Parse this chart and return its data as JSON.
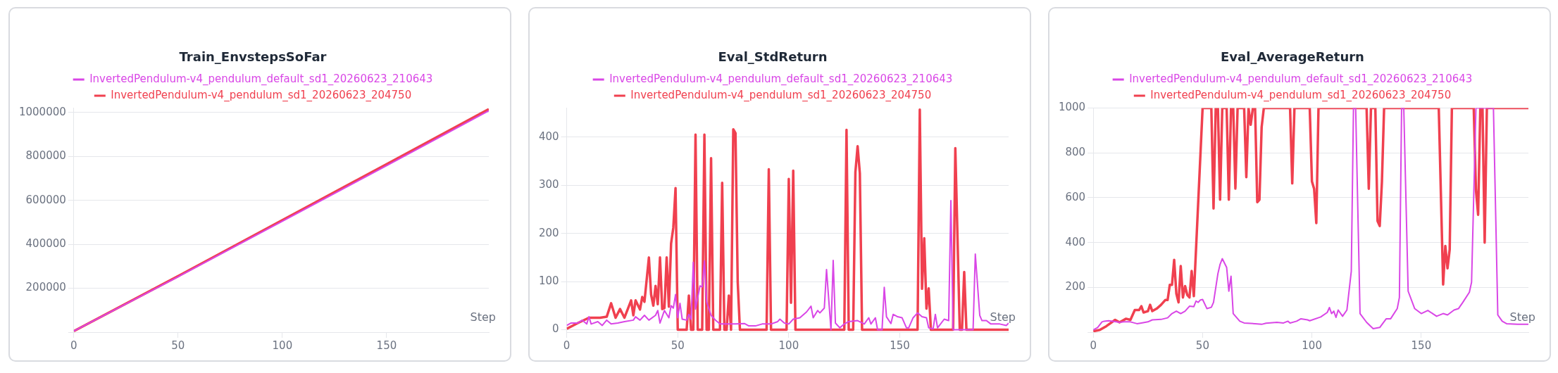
{
  "chart_data": [
    {
      "type": "line",
      "title": "Train_EnvstepsSoFar",
      "xlabel": "Step",
      "legend": "top",
      "grid": "y",
      "xlim": [
        0,
        199
      ],
      "xticks": [
        0,
        50,
        100,
        150
      ],
      "ylim": [
        0,
        1020000
      ],
      "yticks": [
        {
          "value": 0,
          "label": null
        },
        200000,
        400000,
        600000,
        800000,
        1000000
      ],
      "series": [
        {
          "name": "InvertedPendulum-v4_pendulum_default_sd1_20260623_210643",
          "color": "#d946e6",
          "x": [
            0,
            50,
            100,
            150,
            199
          ],
          "values": [
            5000,
            252000,
            505000,
            758000,
            1008000
          ]
        },
        {
          "name": "InvertedPendulum-v4_pendulum_sd1_20260623_204750",
          "color": "#f0404f",
          "x": [
            0,
            50,
            100,
            150,
            199
          ],
          "values": [
            5000,
            255000,
            510000,
            765000,
            1015000
          ]
        }
      ]
    },
    {
      "type": "line",
      "title": "Eval_StdReturn",
      "xlabel": "Step",
      "legend": "top",
      "grid": "y",
      "xlim": [
        0,
        199
      ],
      "xticks": [
        0,
        50,
        100,
        150
      ],
      "ylim": [
        -5,
        460
      ],
      "yticks": [
        0,
        100,
        200,
        300,
        400
      ],
      "series": [
        {
          "name": "InvertedPendulum-v4_pendulum_default_sd1_20260623_210643",
          "color": "#d946e6",
          "x": [
            0,
            2,
            5,
            7,
            9,
            10,
            11,
            14,
            16,
            18,
            20,
            23,
            26,
            30,
            31,
            33,
            35,
            37,
            40,
            41,
            42,
            44,
            46,
            47,
            48,
            49,
            50,
            51,
            52,
            54,
            55,
            56,
            57,
            58,
            60,
            61,
            62,
            63,
            65,
            67,
            69,
            72,
            76,
            80,
            82,
            85,
            88,
            92,
            95,
            96,
            98,
            100,
            102,
            105,
            108,
            110,
            111,
            113,
            114,
            116,
            117,
            119,
            120,
            121,
            123,
            125,
            127,
            131,
            134,
            136,
            137,
            139,
            140,
            142,
            143,
            144,
            146,
            147,
            149,
            151,
            153,
            154,
            156,
            158,
            160,
            162,
            163,
            165,
            166,
            167,
            170,
            172,
            173,
            174,
            183,
            184,
            186,
            187,
            189,
            191,
            195,
            198,
            199
          ],
          "values": [
            9,
            14,
            14,
            20,
            12,
            27,
            12,
            17,
            9,
            20,
            12,
            14,
            17,
            20,
            27,
            20,
            30,
            20,
            30,
            40,
            14,
            40,
            25,
            50,
            45,
            73,
            25,
            55,
            22,
            20,
            32,
            22,
            140,
            43,
            91,
            89,
            143,
            58,
            30,
            20,
            12,
            12,
            12,
            13,
            8,
            8,
            12,
            12,
            17,
            22,
            14,
            12,
            22,
            25,
            37,
            49,
            25,
            40,
            35,
            45,
            125,
            0,
            144,
            14,
            4,
            12,
            17,
            19,
            12,
            25,
            12,
            25,
            0,
            0,
            88,
            27,
            13,
            32,
            27,
            25,
            4,
            4,
            25,
            35,
            27,
            25,
            4,
            2,
            32,
            4,
            22,
            19,
            268,
            0,
            0,
            157,
            30,
            19,
            19,
            12,
            12,
            9,
            14
          ]
        },
        {
          "name": "InvertedPendulum-v4_pendulum_sd1_20260623_204750",
          "color": "#f0404f",
          "x": [
            0,
            5,
            10,
            15,
            18,
            20,
            22,
            24,
            26,
            29,
            30,
            31,
            33,
            34,
            35,
            37,
            38,
            39,
            40,
            41,
            42,
            43,
            44,
            45,
            46,
            47,
            48,
            49,
            50,
            54,
            55,
            56,
            57,
            58,
            59,
            61,
            62,
            63,
            64,
            65,
            66,
            69,
            70,
            71,
            72,
            73,
            74,
            75,
            76,
            77,
            78,
            90,
            91,
            92,
            99,
            100,
            101,
            102,
            103,
            125,
            126,
            127,
            129,
            130,
            131,
            132,
            133,
            158,
            159,
            160,
            161,
            162,
            163,
            164,
            174,
            175,
            177,
            178,
            179,
            180,
            199
          ],
          "values": [
            2,
            14,
            25,
            25,
            27,
            55,
            25,
            43,
            25,
            61,
            30,
            61,
            42,
            68,
            58,
            150,
            73,
            50,
            91,
            53,
            150,
            43,
            45,
            150,
            48,
            179,
            212,
            294,
            0,
            0,
            71,
            0,
            0,
            405,
            0,
            0,
            405,
            0,
            0,
            356,
            0,
            0,
            305,
            0,
            0,
            71,
            0,
            416,
            408,
            99,
            0,
            0,
            333,
            0,
            0,
            313,
            56,
            330,
            0,
            0,
            415,
            0,
            0,
            327,
            381,
            325,
            0,
            0,
            457,
            85,
            190,
            44,
            86,
            0,
            0,
            377,
            0,
            0,
            120,
            0,
            0
          ]
        }
      ]
    },
    {
      "type": "line",
      "title": "Eval_AverageReturn",
      "xlabel": "Step",
      "legend": "top",
      "grid": "y",
      "xlim": [
        0,
        199
      ],
      "xticks": [
        0,
        50,
        100,
        150
      ],
      "ylim": [
        0,
        1000
      ],
      "yticks": [
        {
          "value": 0,
          "label": null
        },
        200,
        400,
        600,
        800,
        1000
      ],
      "series": [
        {
          "name": "InvertedPendulum-v4_pendulum_default_sd1_20260623_210643",
          "color": "#d946e6",
          "x": [
            0,
            2,
            4,
            5,
            7,
            9,
            12,
            14,
            17,
            20,
            22,
            25,
            27,
            31,
            34,
            36,
            38,
            40,
            42,
            44,
            46,
            47,
            48,
            49,
            50,
            52,
            54,
            55,
            57,
            58,
            59,
            61,
            62,
            63,
            64,
            67,
            69,
            74,
            77,
            79,
            84,
            87,
            89,
            90,
            93,
            95,
            98,
            99,
            104,
            107,
            108,
            109,
            110,
            111,
            112,
            114,
            116,
            118,
            119,
            120,
            122,
            125,
            128,
            131,
            134,
            136,
            139,
            140,
            141,
            142,
            144,
            147,
            150,
            153,
            157,
            160,
            162,
            165,
            167,
            169,
            172,
            173,
            175,
            183,
            185,
            187,
            189,
            194,
            199
          ],
          "values": [
            10,
            21,
            46,
            49,
            51,
            49,
            44,
            46,
            46,
            38,
            41,
            46,
            55,
            57,
            64,
            83,
            94,
            83,
            94,
            116,
            114,
            139,
            133,
            144,
            146,
            105,
            111,
            133,
            261,
            303,
            328,
            289,
            183,
            250,
            83,
            49,
            41,
            38,
            35,
            40,
            44,
            41,
            49,
            41,
            49,
            60,
            55,
            51,
            68,
            88,
            110,
            83,
            94,
            66,
            99,
            71,
            99,
            272,
            1000,
            1000,
            83,
            44,
            16,
            21,
            60,
            60,
            105,
            155,
            1000,
            1000,
            183,
            105,
            83,
            97,
            71,
            83,
            77,
            99,
            105,
            133,
            178,
            223,
            1000,
            1000,
            77,
            49,
            38,
            35,
            35
          ]
        },
        {
          "name": "InvertedPendulum-v4_pendulum_sd1_20260623_204750",
          "color": "#f0404f",
          "x": [
            0,
            3,
            6,
            10,
            12,
            15,
            17,
            19,
            21,
            22,
            23,
            25,
            26,
            27,
            29,
            31,
            33,
            34,
            35,
            36,
            37,
            38,
            39,
            40,
            41,
            42,
            43,
            44,
            45,
            46,
            50,
            54,
            55,
            56,
            57,
            58,
            59,
            61,
            62,
            63,
            64,
            65,
            66,
            69,
            70,
            71,
            72,
            73,
            74,
            75,
            76,
            77,
            78,
            90,
            91,
            92,
            99,
            100,
            101,
            102,
            103,
            125,
            126,
            127,
            129,
            130,
            131,
            132,
            133,
            158,
            160,
            161,
            162,
            163,
            164,
            174,
            175,
            176,
            177,
            178,
            179,
            180,
            199
          ],
          "values": [
            4,
            10,
            27,
            55,
            44,
            60,
            55,
            99,
            99,
            116,
            88,
            94,
            122,
            94,
            105,
            122,
            144,
            144,
            211,
            211,
            323,
            172,
            133,
            295,
            155,
            206,
            166,
            155,
            273,
            161,
            1000,
            1000,
            552,
            1000,
            1000,
            591,
            1000,
            1000,
            591,
            1000,
            1000,
            641,
            1000,
            1000,
            692,
            1000,
            926,
            1000,
            1000,
            580,
            591,
            915,
            1000,
            1000,
            664,
            1000,
            1000,
            673,
            640,
            487,
            1000,
            1000,
            640,
            1000,
            1000,
            496,
            474,
            670,
            1000,
            1000,
            213,
            385,
            285,
            369,
            1000,
            1000,
            636,
            524,
            1000,
            1000,
            400,
            1000,
            1000
          ]
        }
      ]
    }
  ]
}
